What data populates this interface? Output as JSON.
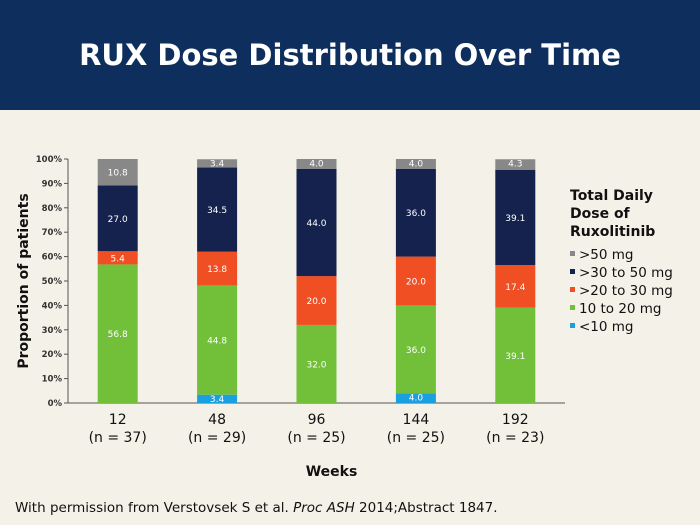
{
  "slide": {
    "title": "RUX Dose Distribution Over Time",
    "citation_pre": "With permission from Verstovsek S et al. ",
    "citation_journal": "Proc ASH",
    "citation_post": " 2014;Abstract 1847."
  },
  "chart_data": {
    "type": "bar",
    "stacked": true,
    "categories": [
      "12",
      "48",
      "96",
      "144",
      "192"
    ],
    "category_sublabels": [
      "(n = 37)",
      "(n = 29)",
      "(n = 25)",
      "(n = 25)",
      "(n = 23)"
    ],
    "xlabel": "Weeks",
    "ylabel": "Proportion of patients",
    "ylim": [
      0,
      100
    ],
    "yticks": [
      "0%",
      "10%",
      "20%",
      "30%",
      "40%",
      "50%",
      "60%",
      "70%",
      "80%",
      "90%",
      "100%"
    ],
    "legend_title": "Total Daily Dose of Ruxolitinib",
    "legend_title_lines": [
      "Total Daily",
      "Dose of",
      "Ruxolitinib"
    ],
    "legend_position": "right",
    "series": [
      {
        "name": "<10 mg",
        "color": "#1a9fe0",
        "values": [
          0,
          3.4,
          0,
          4.0,
          0
        ],
        "labels": [
          "",
          "3.4",
          "",
          "4.0",
          ""
        ]
      },
      {
        "name": "10 to 20 mg",
        "color": "#72bf3a",
        "values": [
          56.8,
          44.8,
          32.0,
          36.0,
          39.1
        ],
        "labels": [
          "56.8",
          "44.8",
          "32.0",
          "36.0",
          "39.1"
        ]
      },
      {
        "name": ">20 to 30 mg",
        "color": "#f04e23",
        "values": [
          5.4,
          13.8,
          20.0,
          20.0,
          17.4
        ],
        "labels": [
          "5.4",
          "13.8",
          "20.0",
          "20.0",
          "17.4"
        ]
      },
      {
        "name": ">30 to 50 mg",
        "color": "#16224e",
        "values": [
          27.0,
          34.5,
          44.0,
          36.0,
          39.1
        ],
        "labels": [
          "27.0",
          "34.5",
          "44.0",
          "36.0",
          "39.1"
        ]
      },
      {
        "name": ">50 mg",
        "color": "#888888",
        "values": [
          10.8,
          3.4,
          4.0,
          4.0,
          4.3
        ],
        "labels": [
          "10.8",
          "3.4",
          "4.0",
          "4.0",
          "4.3"
        ]
      }
    ],
    "legend_order": [
      ">50 mg",
      ">30 to 50 mg",
      ">20 to 30 mg",
      "10 to 20 mg",
      "<10 mg"
    ]
  }
}
